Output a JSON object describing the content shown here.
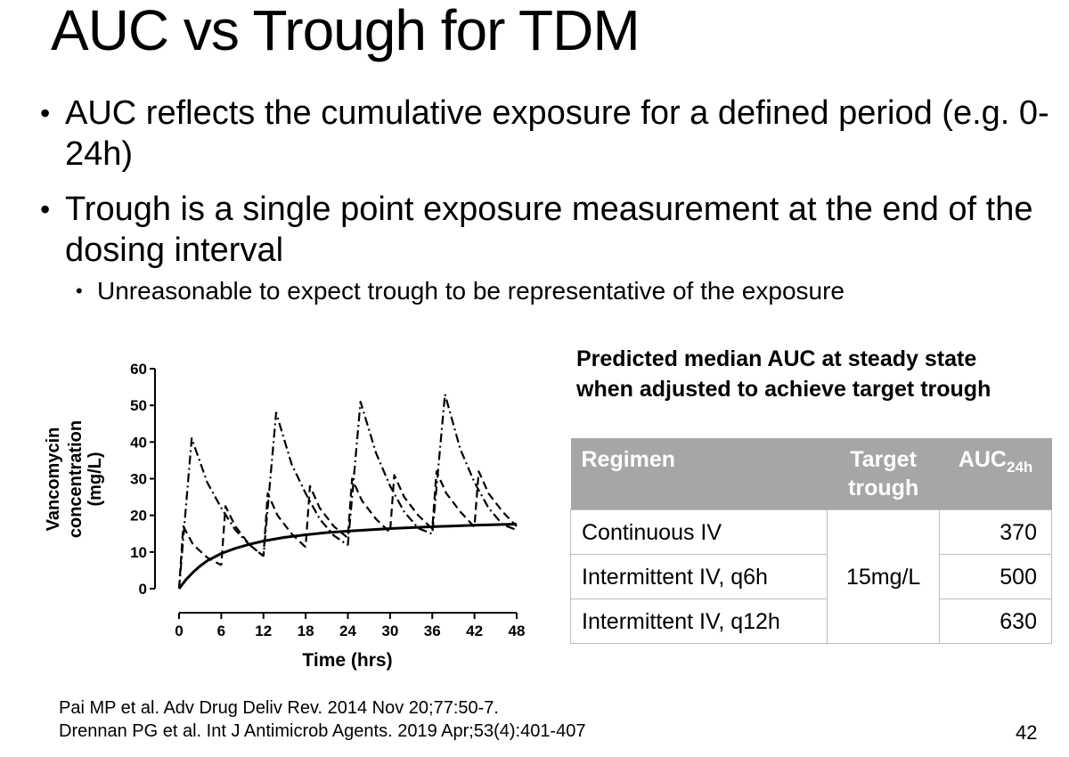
{
  "slide": {
    "title": "AUC vs Trough for TDM",
    "bullets": [
      "AUC reflects the cumulative exposure for a defined period (e.g. 0-24h)",
      "Trough is a single point exposure measurement at the end of the dosing interval"
    ],
    "subbullet": "Unreasonable to expect trough to be representative of the exposure",
    "references": [
      "Pai MP et al. Adv Drug Deliv Rev. 2014 Nov 20;77:50-7.",
      "Drennan PG et al. Int J Antimicrob Agents. 2019 Apr;53(4):401-407"
    ],
    "page_number": "42"
  },
  "table": {
    "caption": "Predicted median AUC at steady state when adjusted to achieve target trough",
    "headers": {
      "regimen": "Regimen",
      "target": "Target trough",
      "auc": "AUC",
      "auc_sub": "24h"
    },
    "target_value": "15mg/L",
    "rows": [
      {
        "regimen": "Continuous IV",
        "auc": "370"
      },
      {
        "regimen": "Intermittent IV, q6h",
        "auc": "500"
      },
      {
        "regimen": "Intermittent IV, q12h",
        "auc": "630"
      }
    ]
  },
  "chart_data": {
    "type": "line",
    "xlabel": "Time (hrs)",
    "ylabel": "Vancomycin concentration (mg/L)",
    "xlim": [
      0,
      48
    ],
    "ylim": [
      0,
      60
    ],
    "xticks": [
      0,
      6,
      12,
      18,
      24,
      30,
      36,
      42,
      48
    ],
    "yticks": [
      0,
      10,
      20,
      30,
      40,
      50,
      60
    ],
    "grid": false,
    "series": [
      {
        "style": "solid",
        "x": [
          0,
          1,
          2,
          3,
          4,
          6,
          8,
          10,
          12,
          15,
          18,
          21,
          24,
          30,
          36,
          42,
          48
        ],
        "y": [
          0,
          2.5,
          4.5,
          6.2,
          7.6,
          9.6,
          11.0,
          12.1,
          13.0,
          14.0,
          14.7,
          15.3,
          15.7,
          16.4,
          16.9,
          17.3,
          17.6
        ]
      },
      {
        "style": "dashed",
        "x": [
          0,
          0.6,
          2,
          4,
          5.9,
          6,
          6.6,
          8,
          10,
          11.9,
          12,
          12.6,
          14,
          16,
          17.9,
          18,
          18.6,
          20,
          22,
          23.9,
          24,
          24.6,
          26,
          28,
          29.9,
          30,
          30.6,
          32,
          34,
          35.9,
          36,
          36.6,
          38,
          40,
          41.9,
          42,
          42.6,
          44,
          46,
          48
        ],
        "y": [
          0,
          17,
          12,
          8.5,
          6.5,
          6.5,
          22.5,
          17,
          12,
          9,
          9,
          26,
          20,
          15,
          11.5,
          11.5,
          28,
          22,
          17,
          14,
          14,
          30,
          24,
          19,
          15.5,
          15.5,
          31,
          25,
          20,
          16.5,
          16.5,
          32,
          26,
          21,
          17,
          17,
          32,
          26,
          21,
          17
        ]
      },
      {
        "style": "dash-dot",
        "x": [
          0,
          1.8,
          4,
          6,
          8,
          10,
          11.9,
          12,
          13.8,
          16,
          18,
          20,
          22,
          23.9,
          24,
          25.8,
          28,
          30,
          32,
          34,
          35.9,
          36,
          37.8,
          40,
          42,
          44,
          46,
          48
        ],
        "y": [
          0,
          41,
          29,
          22,
          16,
          12,
          9,
          9,
          48,
          34,
          26,
          19,
          14.5,
          12,
          12,
          51,
          37,
          28,
          21,
          16.5,
          15,
          15,
          53,
          38,
          29,
          22,
          17.5,
          16
        ]
      }
    ]
  }
}
